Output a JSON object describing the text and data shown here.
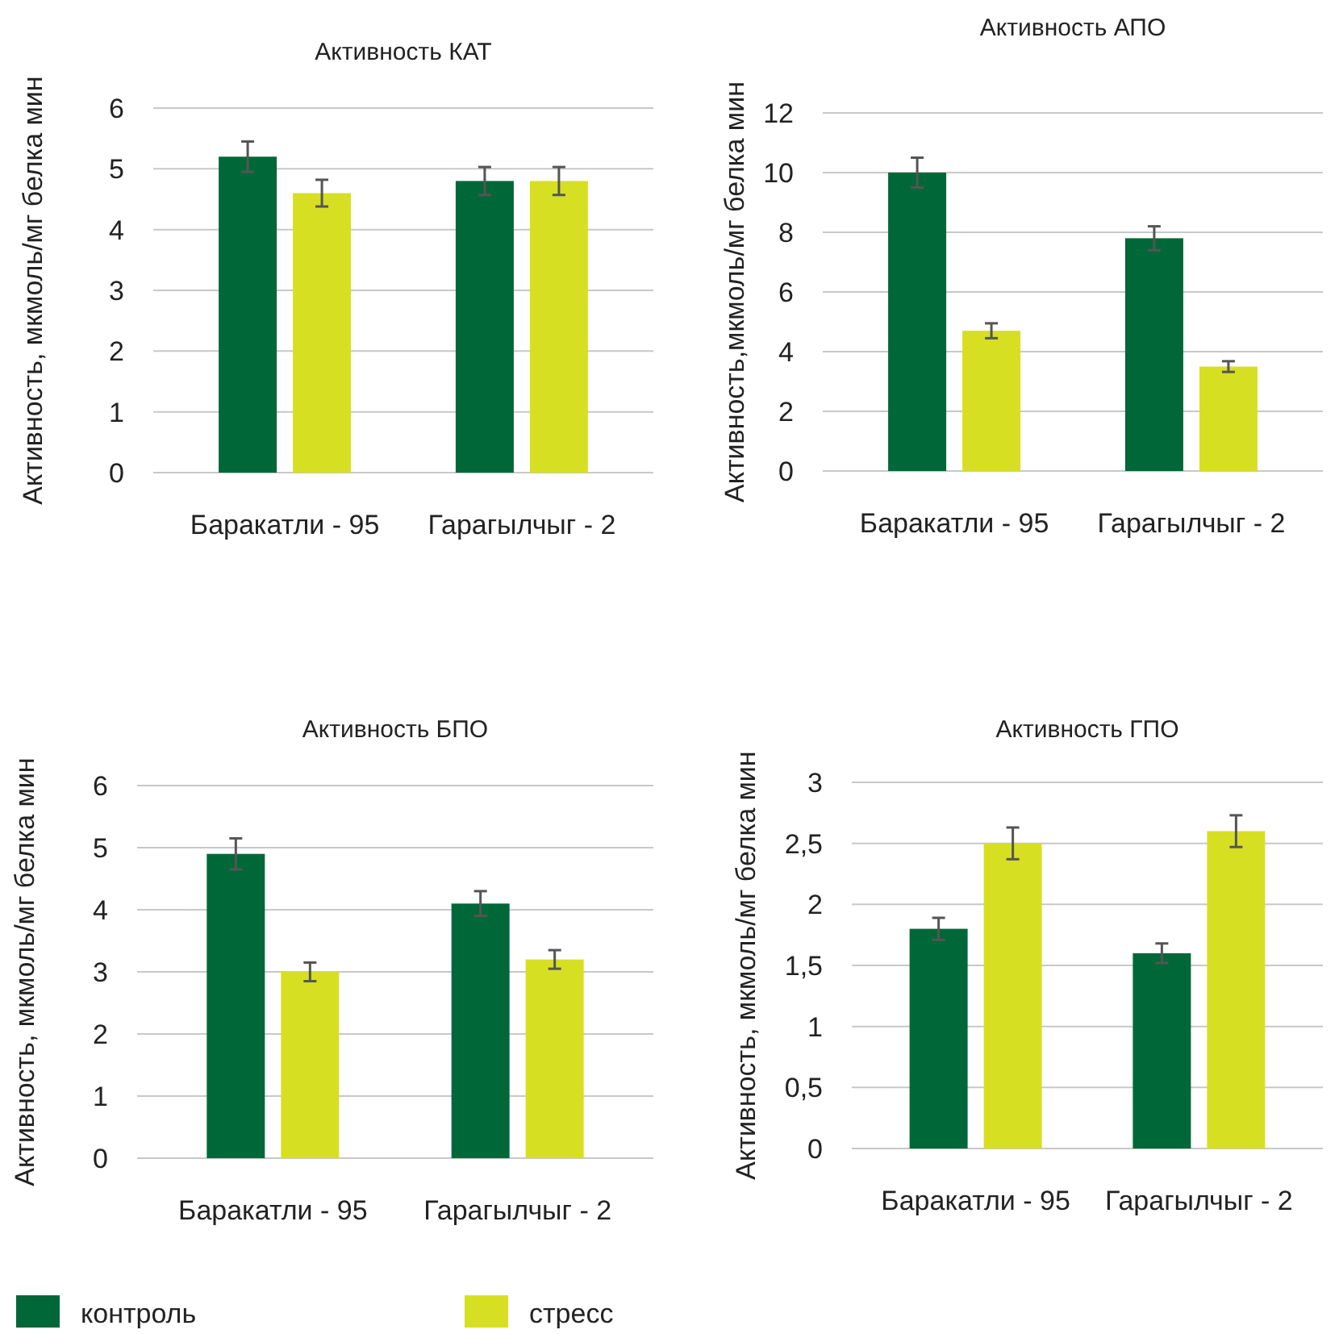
{
  "chart_data": [
    {
      "type": "bar",
      "title": "Активность КАТ",
      "ylabel": "Активность, мкмоль/мг белка мин",
      "categories": [
        "Баракатли - 95",
        "Гарагылчыг - 2"
      ],
      "series": [
        {
          "color": "#006838",
          "values": [
            5.2,
            4.8
          ],
          "errors": [
            0.25,
            0.23
          ]
        },
        {
          "color": "#d7df23",
          "values": [
            4.6,
            4.8
          ],
          "errors": [
            0.22,
            0.23
          ]
        }
      ],
      "ylim": [
        0,
        6
      ],
      "yticks": [
        0,
        1,
        2,
        3,
        4,
        5,
        6
      ],
      "grid": "y"
    },
    {
      "type": "bar",
      "title": "Активность АПО",
      "ylabel": "Активность,мкмоль/мг белка мин",
      "categories": [
        "Баракатли - 95",
        "Гарагылчыг - 2"
      ],
      "series": [
        {
          "color": "#006838",
          "values": [
            10,
            7.8
          ],
          "errors": [
            0.5,
            0.4
          ]
        },
        {
          "color": "#d7df23",
          "values": [
            4.7,
            3.5
          ],
          "errors": [
            0.25,
            0.18
          ]
        }
      ],
      "ylim": [
        0,
        12
      ],
      "yticks": [
        0,
        2,
        4,
        6,
        8,
        10,
        12
      ],
      "grid": "y"
    },
    {
      "type": "bar",
      "title": "Активность БПО",
      "ylabel": "Активность, мкмоль/мг белка мин",
      "categories": [
        "Баракатли - 95",
        "Гарагылчыг - 2"
      ],
      "series": [
        {
          "color": "#006838",
          "values": [
            4.9,
            4.1
          ],
          "errors": [
            0.25,
            0.2
          ]
        },
        {
          "color": "#d7df23",
          "values": [
            3.0,
            3.2
          ],
          "errors": [
            0.15,
            0.15
          ]
        }
      ],
      "ylim": [
        0,
        6
      ],
      "yticks": [
        0,
        1,
        2,
        3,
        4,
        5,
        6
      ],
      "grid": "y"
    },
    {
      "type": "bar",
      "title": "Активность ГПО",
      "ylabel": "Активность, мкмоль/мг белка мин",
      "categories": [
        "Баракатли - 95",
        "Гарагылчыг - 2"
      ],
      "series": [
        {
          "name": "контроль",
          "color": "#006838",
          "values": [
            1.8,
            1.6
          ],
          "errors": [
            0.09,
            0.08
          ]
        },
        {
          "name": "стресс",
          "color": "#d7df23",
          "values": [
            2.5,
            2.6
          ],
          "errors": [
            0.13,
            0.13
          ]
        }
      ],
      "ylim": [
        0,
        3
      ],
      "yticks": [
        0,
        {
          "value": 0.5,
          "label": "0,5"
        },
        1,
        {
          "value": 1.5,
          "label": "1,5"
        },
        2,
        {
          "value": 2.5,
          "label": "2,5"
        },
        3
      ],
      "grid": "y",
      "legend": "bottom"
    }
  ]
}
